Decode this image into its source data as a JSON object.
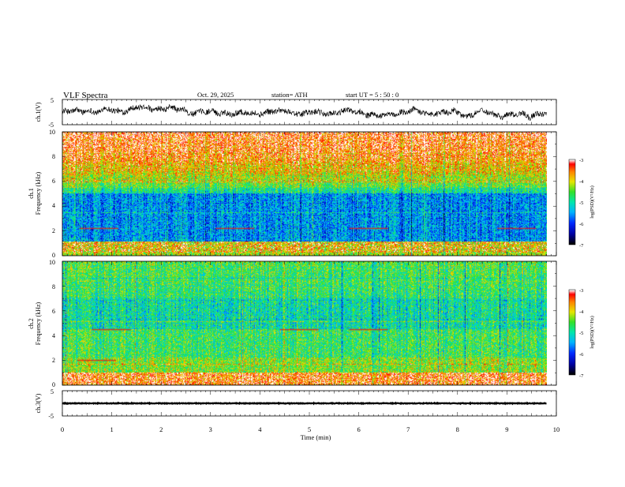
{
  "header": {
    "title": "VLF  Spectra",
    "date": "Oct. 29, 2025",
    "station": "station= ATH",
    "start_ut": "start  UT  =    5  : 50 : 0"
  },
  "chart_data": [
    {
      "type": "line",
      "name": "ch1-waveform",
      "ylabel": "ch.1(V)",
      "ylim": [
        -5,
        5
      ],
      "yticks": [
        "5",
        "-5"
      ],
      "xlim": [
        0,
        10
      ],
      "description_values": {
        "baseline": 0,
        "typical_amplitude": 2.5
      }
    },
    {
      "type": "heatmap",
      "name": "ch1-spectrogram",
      "ylabel": "ch.1\nFrequency  (kHz)",
      "ylim": [
        0,
        10
      ],
      "yticks": [
        "0",
        "2",
        "4",
        "6",
        "8",
        "10"
      ],
      "xlim": [
        0,
        9.8
      ],
      "colorbar": {
        "label": "log(PSD)(V²/Hz)",
        "range": [
          -7,
          -3
        ],
        "ticks": [
          "-3",
          "-4",
          "-5",
          "-6",
          "-7"
        ]
      }
    },
    {
      "type": "heatmap",
      "name": "ch2-spectrogram",
      "ylabel": "ch.2\nFrequency  (kHz)",
      "ylim": [
        0,
        10
      ],
      "yticks": [
        "0",
        "2",
        "4",
        "6",
        "8",
        "10"
      ],
      "xlim": [
        0,
        9.8
      ],
      "colorbar": {
        "label": "log(PSD)(V²/Hz)",
        "range": [
          -7,
          -3
        ],
        "ticks": [
          "-3",
          "-4",
          "-5",
          "-6",
          "-7"
        ]
      }
    },
    {
      "type": "line",
      "name": "ch3-waveform",
      "ylabel": "ch.3(V)",
      "ylim": [
        -5,
        5
      ],
      "yticks": [
        "5",
        "-5"
      ],
      "xlim": [
        0,
        10
      ],
      "description_values": {
        "baseline": 0,
        "typical_amplitude": 0.05
      }
    }
  ],
  "xaxis": {
    "label": "Time  (min)",
    "ticks": [
      "0",
      "1",
      "2",
      "3",
      "4",
      "5",
      "6",
      "7",
      "8",
      "9",
      "10"
    ]
  },
  "colors": {
    "axis": "#000000",
    "colormap": [
      "#000000",
      "#0000ff",
      "#00b0ff",
      "#00e0a0",
      "#30e030",
      "#e0e000",
      "#ff8000",
      "#ff0000",
      "#ffffff"
    ]
  }
}
